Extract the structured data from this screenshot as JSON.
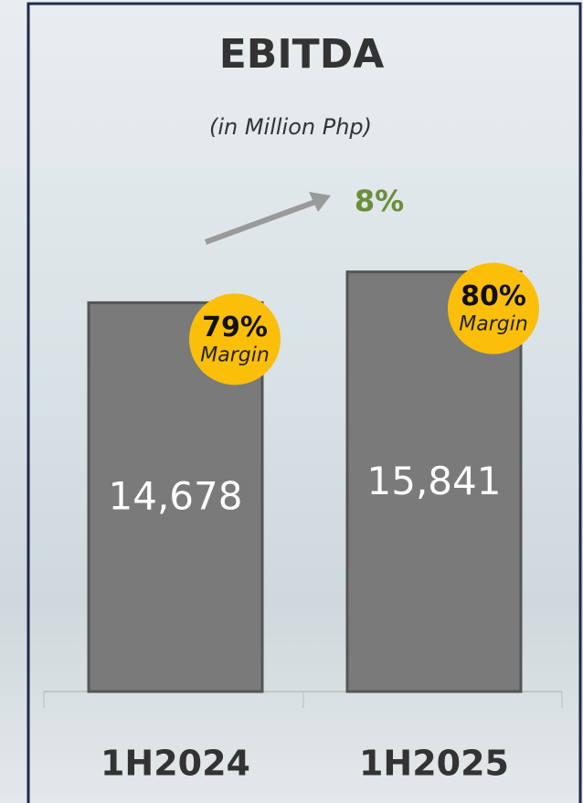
{
  "chart_data": {
    "type": "bar",
    "title": "EBITDA",
    "subtitle": "(in Million Php)",
    "categories": [
      "1H2024",
      "1H2025"
    ],
    "values": [
      14678,
      15841
    ],
    "value_labels": [
      "14,678",
      "15,841"
    ],
    "color": "#7a7a7a",
    "ylim": [
      0,
      17000
    ],
    "margins": {
      "values": [
        79,
        80
      ],
      "value_labels": [
        "79%",
        "80%"
      ],
      "label": "Margin",
      "color": "#fbbf0a"
    },
    "growth": {
      "value": 8,
      "label": "8%",
      "color": "#6b8e3a"
    }
  }
}
